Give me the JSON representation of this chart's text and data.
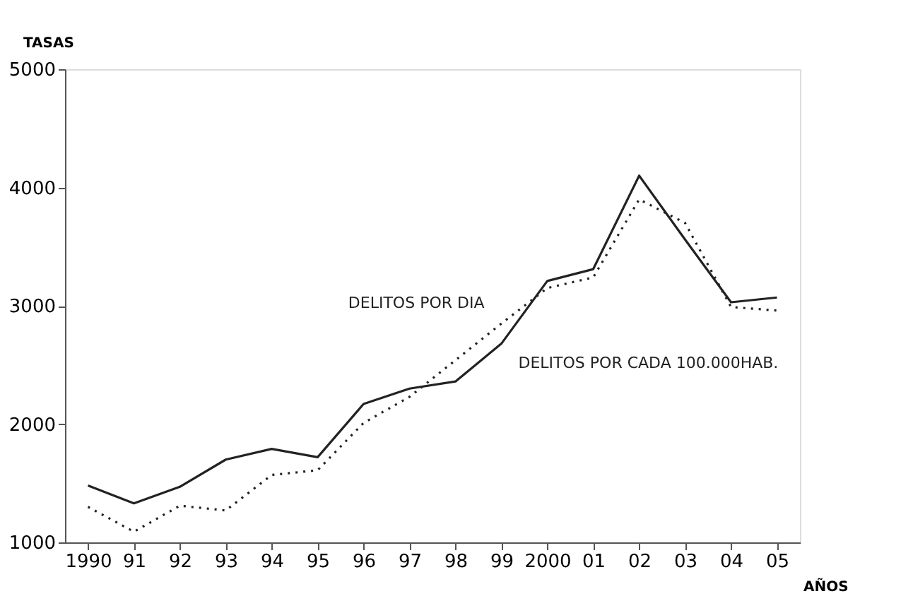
{
  "chart_data": {
    "type": "line",
    "ylabel": "TASAS",
    "xlabel": "AÑOS",
    "categories": [
      "1990",
      "91",
      "92",
      "93",
      "94",
      "95",
      "96",
      "97",
      "98",
      "99",
      "2000",
      "01",
      "02",
      "03",
      "04",
      "05"
    ],
    "series": [
      {
        "name": "DELITOS POR CADA 100.000HAB.",
        "color": "#222222",
        "line_style": "solid",
        "values": [
          1480,
          1330,
          1470,
          1700,
          1790,
          1720,
          2170,
          2300,
          2360,
          2680,
          3210,
          3310,
          4100,
          3560,
          3030,
          3070
        ]
      },
      {
        "name": "DELITOS POR DIA",
        "color": "#222222",
        "line_style": "dotted",
        "values": [
          1300,
          1090,
          1310,
          1270,
          1570,
          1610,
          2010,
          2230,
          2540,
          2850,
          3150,
          3240,
          3900,
          3700,
          2990,
          2960
        ]
      }
    ],
    "ylim": [
      1000,
      5000
    ],
    "yticks": [
      1000,
      2000,
      3000,
      4000,
      5000
    ],
    "grid": false,
    "legend": false,
    "marker": "none"
  }
}
